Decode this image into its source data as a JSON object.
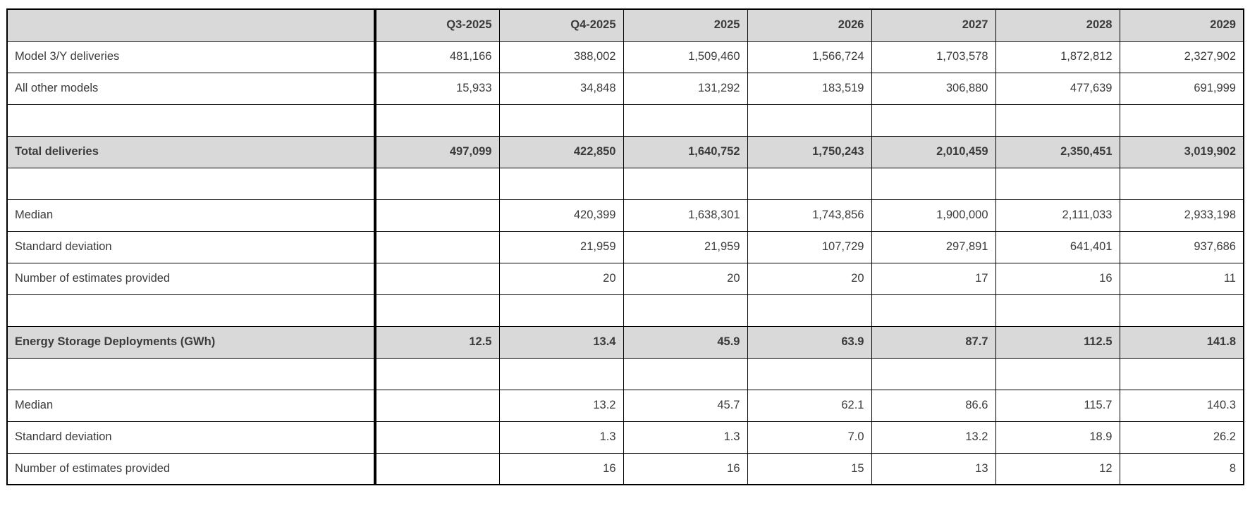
{
  "table": {
    "colors": {
      "header_bg": "#d9d9d9",
      "highlight_bg": "#d9d9d9",
      "grid": "#000000",
      "text": "#3b3b3b"
    },
    "columns": [
      "",
      "Q3-2025",
      "Q4-2025",
      "2025",
      "2026",
      "2027",
      "2028",
      "2029"
    ],
    "rows": [
      {
        "label": "Model 3/Y deliveries",
        "style": "normal",
        "values": [
          "481,166",
          "388,002",
          "1,509,460",
          "1,566,724",
          "1,703,578",
          "1,872,812",
          "2,327,902"
        ]
      },
      {
        "label": "All other models",
        "style": "normal",
        "values": [
          "15,933",
          "34,848",
          "131,292",
          "183,519",
          "306,880",
          "477,639",
          "691,999"
        ]
      },
      {
        "label": "",
        "style": "spacer",
        "values": [
          "",
          "",
          "",
          "",
          "",
          "",
          ""
        ]
      },
      {
        "label": "Total deliveries",
        "style": "highlight",
        "values": [
          "497,099",
          "422,850",
          "1,640,752",
          "1,750,243",
          "2,010,459",
          "2,350,451",
          "3,019,902"
        ]
      },
      {
        "label": "",
        "style": "spacer",
        "values": [
          "",
          "",
          "",
          "",
          "",
          "",
          ""
        ]
      },
      {
        "label": "Median",
        "style": "normal",
        "values": [
          "",
          "420,399",
          "1,638,301",
          "1,743,856",
          "1,900,000",
          "2,111,033",
          "2,933,198"
        ]
      },
      {
        "label": "Standard deviation",
        "style": "normal",
        "values": [
          "",
          "21,959",
          "21,959",
          "107,729",
          "297,891",
          "641,401",
          "937,686"
        ]
      },
      {
        "label": "Number of estimates provided",
        "style": "normal",
        "values": [
          "",
          "20",
          "20",
          "20",
          "17",
          "16",
          "11"
        ]
      },
      {
        "label": "",
        "style": "spacer",
        "values": [
          "",
          "",
          "",
          "",
          "",
          "",
          ""
        ]
      },
      {
        "label": "Energy Storage Deployments (GWh)",
        "style": "highlight",
        "values": [
          "12.5",
          "13.4",
          "45.9",
          "63.9",
          "87.7",
          "112.5",
          "141.8"
        ]
      },
      {
        "label": "",
        "style": "spacer",
        "values": [
          "",
          "",
          "",
          "",
          "",
          "",
          ""
        ]
      },
      {
        "label": "Median",
        "style": "normal",
        "values": [
          "",
          "13.2",
          "45.7",
          "62.1",
          "86.6",
          "115.7",
          "140.3"
        ]
      },
      {
        "label": "Standard deviation",
        "style": "normal",
        "values": [
          "",
          "1.3",
          "1.3",
          "7.0",
          "13.2",
          "18.9",
          "26.2"
        ]
      },
      {
        "label": "Number of estimates provided",
        "style": "normal",
        "values": [
          "",
          "16",
          "16",
          "15",
          "13",
          "12",
          "8"
        ]
      }
    ]
  }
}
